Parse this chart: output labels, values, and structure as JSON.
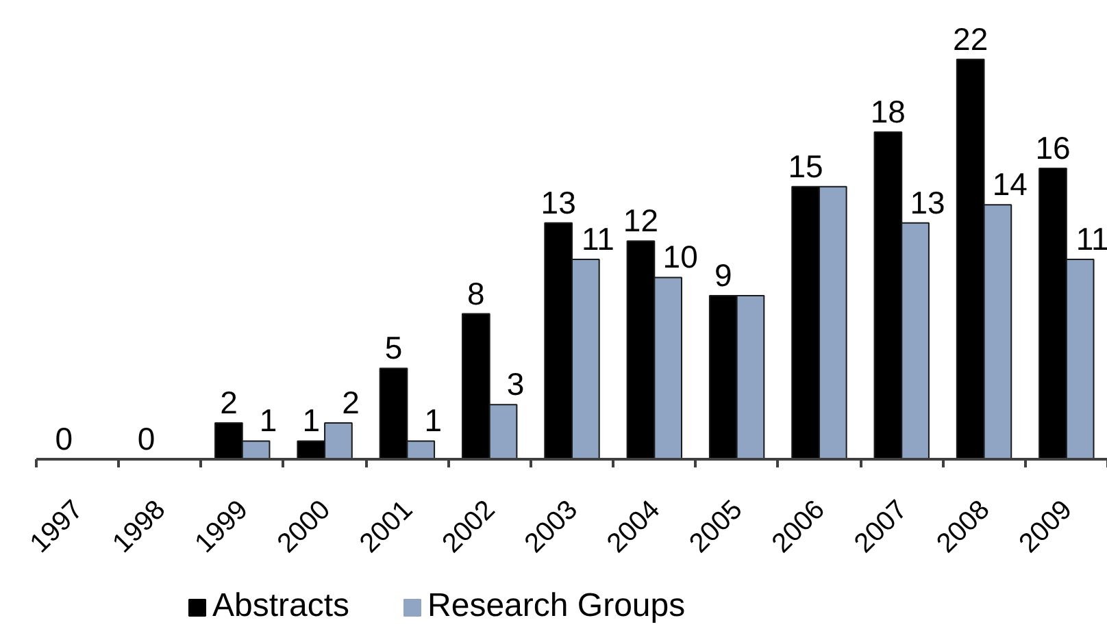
{
  "chart_data": {
    "type": "bar",
    "categories": [
      "1997",
      "1998",
      "1999",
      "2000",
      "2001",
      "2002",
      "2003",
      "2004",
      "2005",
      "2006",
      "2007",
      "2008",
      "2009"
    ],
    "series": [
      {
        "name": "Abstracts",
        "color": "#000000",
        "values": [
          0,
          0,
          2,
          1,
          5,
          8,
          13,
          12,
          9,
          15,
          18,
          22,
          16
        ],
        "value_labels": [
          "0",
          "0",
          "2",
          "1",
          "5",
          "8",
          "13",
          "12",
          "9",
          "15",
          "18",
          "22",
          "16"
        ]
      },
      {
        "name": "Research Groups",
        "color": "#8fa5c3",
        "values": [
          0,
          0,
          1,
          2,
          1,
          3,
          11,
          10,
          9,
          15,
          13,
          14,
          11
        ],
        "value_labels": [
          null,
          null,
          "1",
          "2",
          "1",
          "3",
          "11",
          "10",
          null,
          null,
          "13",
          "14",
          "11"
        ]
      }
    ],
    "tick_labels": "x",
    "grid": false,
    "legend": "bottom"
  }
}
